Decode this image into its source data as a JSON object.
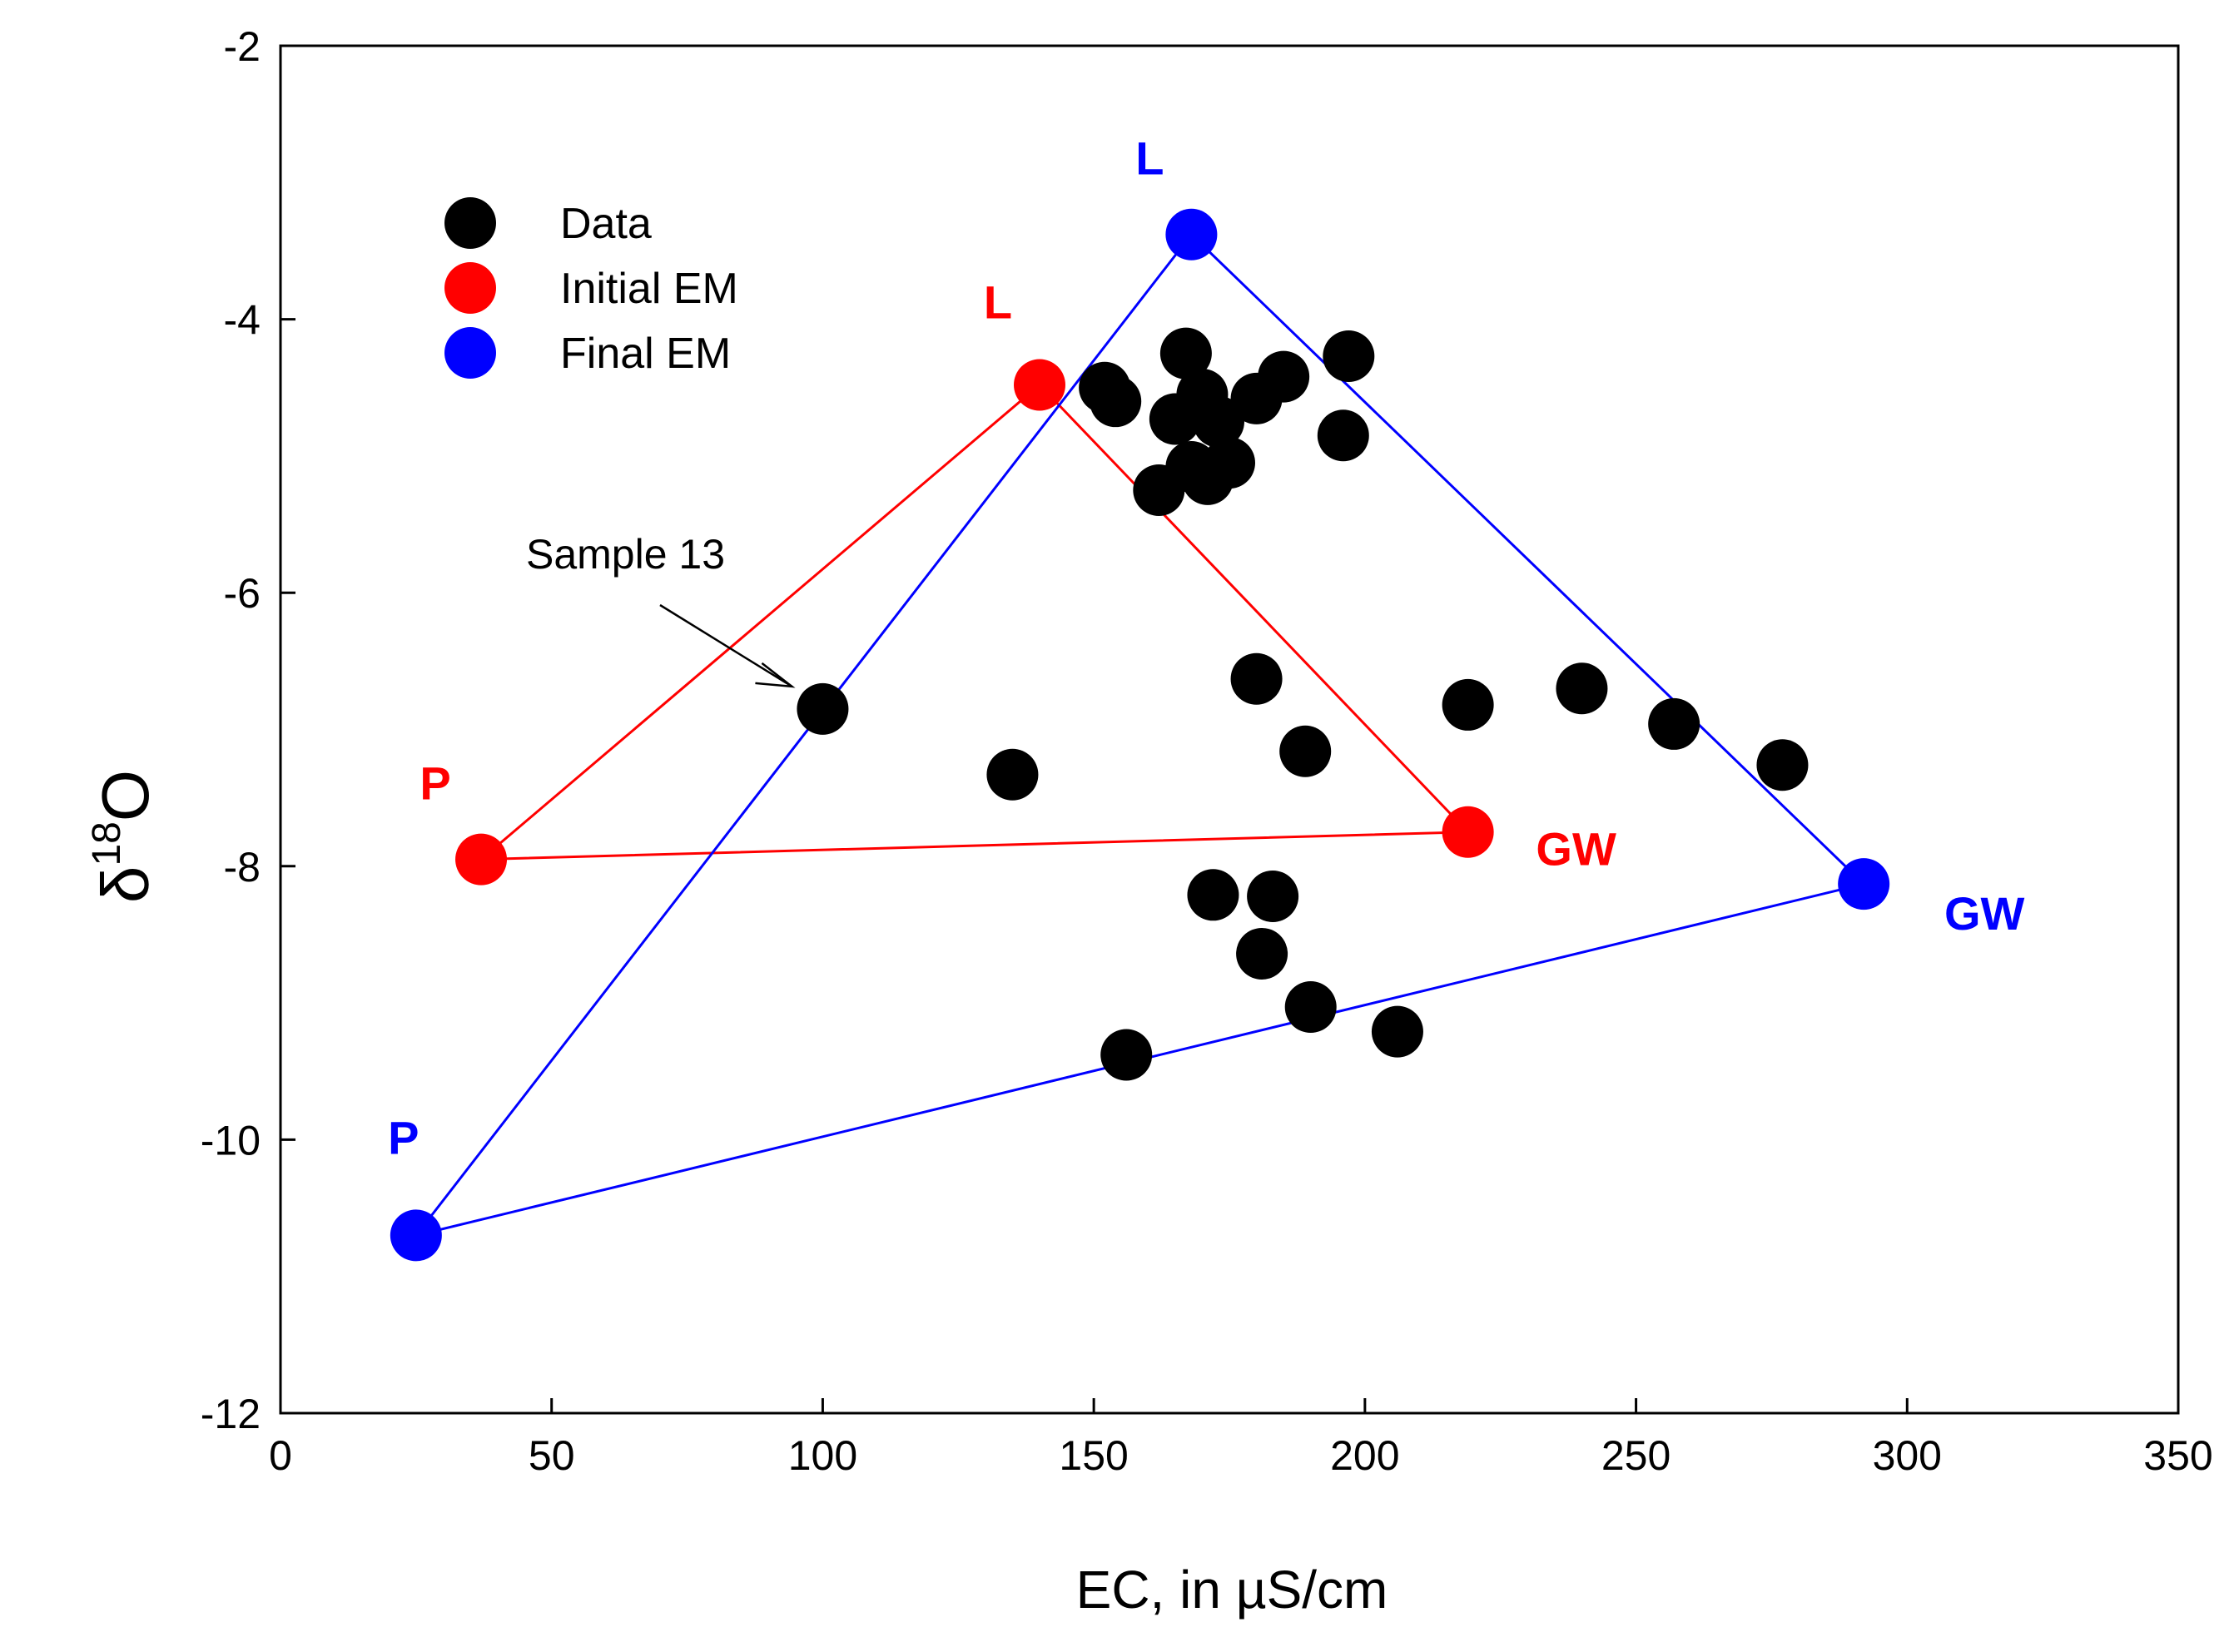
{
  "chart_data": {
    "type": "scatter",
    "title": "",
    "xlabel": "EC, in µS/cm",
    "ylabel_symbol": "δ",
    "ylabel_superscript": "18",
    "ylabel_element": "O",
    "xlim": [
      0,
      350
    ],
    "ylim": [
      -12,
      -2
    ],
    "x_ticks": [
      0,
      50,
      100,
      150,
      200,
      250,
      300,
      350
    ],
    "x_tick_labels": [
      "0",
      "50",
      "100",
      "150",
      "200",
      "250",
      "300",
      "350"
    ],
    "y_ticks": [
      -12,
      -10,
      -8,
      -6,
      -4,
      -2
    ],
    "y_tick_labels": [
      "-12",
      "-10",
      "-8",
      "-6",
      "-4",
      "-2"
    ],
    "grid": false,
    "legend_position": "top-left",
    "legend": [
      {
        "label": "Data",
        "color": "#000000"
      },
      {
        "label": "Initial EM",
        "color": "#ff0000"
      },
      {
        "label": "Final EM",
        "color": "#0000ff"
      }
    ],
    "series": [
      {
        "name": "Data",
        "color": "#000000",
        "points": [
          {
            "x": 100,
            "y": -6.85
          },
          {
            "x": 135,
            "y": -7.33
          },
          {
            "x": 152,
            "y": -4.5
          },
          {
            "x": 154,
            "y": -4.6
          },
          {
            "x": 156,
            "y": -9.38
          },
          {
            "x": 162,
            "y": -5.25
          },
          {
            "x": 165,
            "y": -4.73
          },
          {
            "x": 167,
            "y": -4.25
          },
          {
            "x": 168,
            "y": -5.08
          },
          {
            "x": 170,
            "y": -4.55
          },
          {
            "x": 171,
            "y": -5.17
          },
          {
            "x": 173,
            "y": -4.75
          },
          {
            "x": 175,
            "y": -5.05
          },
          {
            "x": 180,
            "y": -4.58
          },
          {
            "x": 180,
            "y": -6.63
          },
          {
            "x": 172,
            "y": -8.21
          },
          {
            "x": 181,
            "y": -8.64
          },
          {
            "x": 183,
            "y": -8.22
          },
          {
            "x": 185,
            "y": -4.42
          },
          {
            "x": 189,
            "y": -7.16
          },
          {
            "x": 190,
            "y": -9.03
          },
          {
            "x": 196,
            "y": -4.85
          },
          {
            "x": 197,
            "y": -4.27
          },
          {
            "x": 206,
            "y": -9.21
          },
          {
            "x": 219,
            "y": -6.82
          },
          {
            "x": 240,
            "y": -6.7
          },
          {
            "x": 257,
            "y": -6.96
          },
          {
            "x": 277,
            "y": -7.26
          }
        ]
      },
      {
        "name": "Initial EM",
        "color": "#ff0000",
        "points": [
          {
            "label": "P",
            "x": 37,
            "y": -7.95
          },
          {
            "label": "L",
            "x": 140,
            "y": -4.48
          },
          {
            "label": "GW",
            "x": 219,
            "y": -7.75
          }
        ]
      },
      {
        "name": "Final EM",
        "color": "#0000ff",
        "points": [
          {
            "label": "P",
            "x": 25,
            "y": -10.7
          },
          {
            "label": "L",
            "x": 168,
            "y": -3.38
          },
          {
            "label": "GW",
            "x": 292,
            "y": -8.13
          }
        ]
      }
    ],
    "annotations": [
      {
        "text": "Sample 13",
        "points_to": {
          "x": 100,
          "y": -6.85
        }
      }
    ]
  }
}
